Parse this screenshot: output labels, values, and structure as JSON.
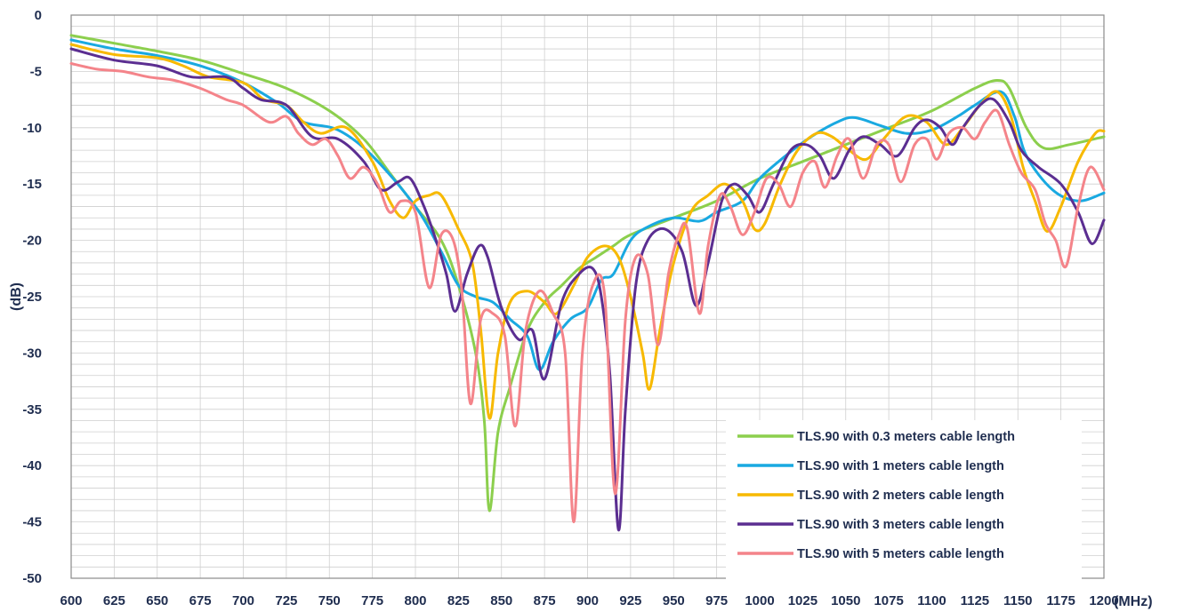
{
  "chart_data": {
    "type": "line",
    "xlabel": "(MHz)",
    "ylabel": "(dB)",
    "xlim": [
      600,
      1200
    ],
    "ylim": [
      -50,
      0
    ],
    "x_ticks": [
      "600",
      "625",
      "650",
      "675",
      "700",
      "725",
      "750",
      "775",
      "800",
      "825",
      "850",
      "875",
      "900",
      "925",
      "950",
      "975",
      "1000",
      "1025",
      "1050",
      "1075",
      "1100",
      "1125",
      "1150",
      "1175",
      "1200"
    ],
    "y_ticks": [
      "0",
      "-5",
      "-10",
      "-15",
      "-20",
      "-25",
      "-30",
      "-35",
      "-40",
      "-45",
      "-50"
    ],
    "grid": true,
    "legend_position": "bottom-right",
    "series": [
      {
        "name": "TLS.90 with 0.3 meters cable length",
        "color": "#8ccf4d",
        "points": [
          [
            600,
            -1.8
          ],
          [
            625,
            -2.5
          ],
          [
            650,
            -3.2
          ],
          [
            675,
            -4.0
          ],
          [
            700,
            -5.2
          ],
          [
            725,
            -6.5
          ],
          [
            750,
            -8.5
          ],
          [
            770,
            -11
          ],
          [
            785,
            -14
          ],
          [
            800,
            -17
          ],
          [
            815,
            -20
          ],
          [
            825,
            -24
          ],
          [
            835,
            -30
          ],
          [
            840,
            -36
          ],
          [
            843,
            -44
          ],
          [
            848,
            -37
          ],
          [
            855,
            -33
          ],
          [
            865,
            -28
          ],
          [
            875,
            -25.5
          ],
          [
            885,
            -24
          ],
          [
            895,
            -22.5
          ],
          [
            905,
            -21.5
          ],
          [
            915,
            -20.5
          ],
          [
            925,
            -19.5
          ],
          [
            950,
            -18
          ],
          [
            975,
            -16.5
          ],
          [
            1000,
            -14.5
          ],
          [
            1025,
            -13
          ],
          [
            1050,
            -11.5
          ],
          [
            1075,
            -10
          ],
          [
            1100,
            -8.5
          ],
          [
            1125,
            -6.5
          ],
          [
            1138,
            -5.8
          ],
          [
            1145,
            -6.5
          ],
          [
            1155,
            -10
          ],
          [
            1165,
            -11.8
          ],
          [
            1180,
            -11.5
          ],
          [
            1200,
            -10.8
          ]
        ]
      },
      {
        "name": "TLS.90 with 1 meters cable length",
        "color": "#19a9e1",
        "points": [
          [
            600,
            -2.2
          ],
          [
            625,
            -3.0
          ],
          [
            650,
            -3.6
          ],
          [
            675,
            -4.5
          ],
          [
            700,
            -6.0
          ],
          [
            720,
            -7.8
          ],
          [
            735,
            -9.5
          ],
          [
            755,
            -10.2
          ],
          [
            775,
            -12.5
          ],
          [
            800,
            -17
          ],
          [
            815,
            -21
          ],
          [
            825,
            -24
          ],
          [
            835,
            -25
          ],
          [
            845,
            -25.5
          ],
          [
            855,
            -27
          ],
          [
            865,
            -28.5
          ],
          [
            872,
            -31.5
          ],
          [
            880,
            -29
          ],
          [
            890,
            -27
          ],
          [
            900,
            -26
          ],
          [
            908,
            -23.5
          ],
          [
            915,
            -23
          ],
          [
            925,
            -20
          ],
          [
            935,
            -18.8
          ],
          [
            950,
            -18
          ],
          [
            965,
            -18.3
          ],
          [
            975,
            -17.5
          ],
          [
            990,
            -16.5
          ],
          [
            1000,
            -14.5
          ],
          [
            1015,
            -12.5
          ],
          [
            1030,
            -10.8
          ],
          [
            1045,
            -9.5
          ],
          [
            1055,
            -9.1
          ],
          [
            1070,
            -9.8
          ],
          [
            1085,
            -10.5
          ],
          [
            1100,
            -10.2
          ],
          [
            1115,
            -9
          ],
          [
            1125,
            -8
          ],
          [
            1140,
            -6.8
          ],
          [
            1148,
            -9
          ],
          [
            1155,
            -12.5
          ],
          [
            1170,
            -15.5
          ],
          [
            1185,
            -16.5
          ],
          [
            1200,
            -15.8
          ]
        ]
      },
      {
        "name": "TLS.90 with 2 meters cable length",
        "color": "#f7b900",
        "points": [
          [
            600,
            -2.6
          ],
          [
            625,
            -3.5
          ],
          [
            650,
            -3.8
          ],
          [
            665,
            -4.5
          ],
          [
            680,
            -5.5
          ],
          [
            700,
            -6.0
          ],
          [
            712,
            -7.5
          ],
          [
            725,
            -8.0
          ],
          [
            735,
            -9.5
          ],
          [
            745,
            -10.5
          ],
          [
            760,
            -10.0
          ],
          [
            775,
            -13.0
          ],
          [
            785,
            -16.5
          ],
          [
            793,
            -18.0
          ],
          [
            800,
            -16.5
          ],
          [
            808,
            -16.0
          ],
          [
            815,
            -16.0
          ],
          [
            825,
            -19.0
          ],
          [
            833,
            -22.0
          ],
          [
            838,
            -28.0
          ],
          [
            843,
            -35.8
          ],
          [
            848,
            -30.0
          ],
          [
            855,
            -25.5
          ],
          [
            865,
            -24.5
          ],
          [
            875,
            -25.5
          ],
          [
            882,
            -26.5
          ],
          [
            892,
            -24.0
          ],
          [
            900,
            -21.5
          ],
          [
            910,
            -20.5
          ],
          [
            918,
            -21.5
          ],
          [
            925,
            -25.0
          ],
          [
            932,
            -30.0
          ],
          [
            936,
            -33.2
          ],
          [
            942,
            -28.0
          ],
          [
            950,
            -22.0
          ],
          [
            960,
            -17.5
          ],
          [
            970,
            -16.0
          ],
          [
            980,
            -15.0
          ],
          [
            990,
            -16.5
          ],
          [
            997,
            -19.0
          ],
          [
            1003,
            -18.5
          ],
          [
            1012,
            -15.0
          ],
          [
            1022,
            -12.0
          ],
          [
            1033,
            -10.5
          ],
          [
            1042,
            -10.8
          ],
          [
            1052,
            -12.0
          ],
          [
            1062,
            -12.8
          ],
          [
            1072,
            -11.0
          ],
          [
            1085,
            -9.0
          ],
          [
            1097,
            -9.5
          ],
          [
            1108,
            -11.5
          ],
          [
            1118,
            -10.0
          ],
          [
            1128,
            -8.0
          ],
          [
            1138,
            -6.8
          ],
          [
            1146,
            -9.0
          ],
          [
            1153,
            -13.5
          ],
          [
            1160,
            -16.5
          ],
          [
            1167,
            -19.2
          ],
          [
            1175,
            -17.0
          ],
          [
            1185,
            -13.0
          ],
          [
            1195,
            -10.5
          ],
          [
            1200,
            -10.3
          ]
        ]
      },
      {
        "name": "TLS.90 with 3 meters cable length",
        "color": "#5b2e91",
        "points": [
          [
            600,
            -3.0
          ],
          [
            625,
            -4.0
          ],
          [
            650,
            -4.5
          ],
          [
            670,
            -5.5
          ],
          [
            690,
            -5.5
          ],
          [
            700,
            -6.5
          ],
          [
            710,
            -7.5
          ],
          [
            725,
            -8.0
          ],
          [
            740,
            -10.8
          ],
          [
            755,
            -11.0
          ],
          [
            770,
            -13.0
          ],
          [
            780,
            -15.5
          ],
          [
            790,
            -14.8
          ],
          [
            797,
            -14.5
          ],
          [
            805,
            -17.0
          ],
          [
            812,
            -20.0
          ],
          [
            818,
            -23.0
          ],
          [
            823,
            -26.3
          ],
          [
            830,
            -23.0
          ],
          [
            837,
            -20.5
          ],
          [
            842,
            -21.5
          ],
          [
            850,
            -26.0
          ],
          [
            860,
            -28.8
          ],
          [
            868,
            -28.0
          ],
          [
            875,
            -32.3
          ],
          [
            885,
            -25.5
          ],
          [
            895,
            -23.0
          ],
          [
            903,
            -22.5
          ],
          [
            908,
            -25.0
          ],
          [
            913,
            -32.0
          ],
          [
            918,
            -45.7
          ],
          [
            922,
            -35.0
          ],
          [
            928,
            -24.0
          ],
          [
            935,
            -20.0
          ],
          [
            945,
            -19.0
          ],
          [
            955,
            -21.0
          ],
          [
            963,
            -25.8
          ],
          [
            970,
            -22.0
          ],
          [
            978,
            -16.5
          ],
          [
            985,
            -15.0
          ],
          [
            993,
            -16.0
          ],
          [
            1000,
            -17.5
          ],
          [
            1008,
            -15.0
          ],
          [
            1018,
            -12.0
          ],
          [
            1027,
            -11.5
          ],
          [
            1035,
            -12.5
          ],
          [
            1043,
            -14.5
          ],
          [
            1052,
            -12.0
          ],
          [
            1060,
            -10.8
          ],
          [
            1070,
            -11.5
          ],
          [
            1080,
            -12.5
          ],
          [
            1090,
            -10.0
          ],
          [
            1097,
            -9.3
          ],
          [
            1105,
            -10.0
          ],
          [
            1112,
            -11.5
          ],
          [
            1118,
            -10.0
          ],
          [
            1128,
            -8.0
          ],
          [
            1136,
            -7.5
          ],
          [
            1145,
            -9.5
          ],
          [
            1152,
            -12.0
          ],
          [
            1162,
            -13.5
          ],
          [
            1175,
            -15.0
          ],
          [
            1185,
            -17.5
          ],
          [
            1193,
            -20.3
          ],
          [
            1200,
            -18.2
          ]
        ]
      },
      {
        "name": "TLS.90 with 5 meters cable length",
        "color": "#f4848a",
        "points": [
          [
            600,
            -4.3
          ],
          [
            615,
            -4.8
          ],
          [
            630,
            -5.0
          ],
          [
            645,
            -5.5
          ],
          [
            660,
            -5.8
          ],
          [
            675,
            -6.5
          ],
          [
            690,
            -7.5
          ],
          [
            700,
            -8.0
          ],
          [
            715,
            -9.5
          ],
          [
            725,
            -9.0
          ],
          [
            732,
            -10.5
          ],
          [
            740,
            -11.5
          ],
          [
            748,
            -11.0
          ],
          [
            755,
            -12.5
          ],
          [
            762,
            -14.5
          ],
          [
            770,
            -13.5
          ],
          [
            778,
            -15.0
          ],
          [
            785,
            -17.5
          ],
          [
            792,
            -16.5
          ],
          [
            800,
            -17.5
          ],
          [
            808,
            -24.2
          ],
          [
            815,
            -19.5
          ],
          [
            822,
            -20.0
          ],
          [
            827,
            -24.5
          ],
          [
            832,
            -34.5
          ],
          [
            838,
            -27.0
          ],
          [
            845,
            -26.5
          ],
          [
            852,
            -28.5
          ],
          [
            858,
            -36.5
          ],
          [
            864,
            -28.0
          ],
          [
            872,
            -24.5
          ],
          [
            880,
            -26.5
          ],
          [
            887,
            -30.0
          ],
          [
            892,
            -45.0
          ],
          [
            897,
            -30.0
          ],
          [
            903,
            -24.0
          ],
          [
            910,
            -25.0
          ],
          [
            916,
            -42.5
          ],
          [
            922,
            -27.0
          ],
          [
            928,
            -21.5
          ],
          [
            935,
            -23.0
          ],
          [
            941,
            -29.3
          ],
          [
            947,
            -23.0
          ],
          [
            953,
            -19.5
          ],
          [
            958,
            -19.0
          ],
          [
            965,
            -26.5
          ],
          [
            970,
            -20.5
          ],
          [
            977,
            -16.0
          ],
          [
            983,
            -17.0
          ],
          [
            990,
            -19.5
          ],
          [
            997,
            -17.5
          ],
          [
            1004,
            -14.5
          ],
          [
            1011,
            -15.0
          ],
          [
            1018,
            -17.0
          ],
          [
            1025,
            -14.0
          ],
          [
            1032,
            -13.0
          ],
          [
            1038,
            -15.3
          ],
          [
            1045,
            -12.5
          ],
          [
            1052,
            -11.0
          ],
          [
            1060,
            -14.5
          ],
          [
            1068,
            -11.5
          ],
          [
            1075,
            -11.5
          ],
          [
            1082,
            -14.8
          ],
          [
            1090,
            -11.5
          ],
          [
            1097,
            -11.0
          ],
          [
            1103,
            -12.8
          ],
          [
            1110,
            -10.5
          ],
          [
            1118,
            -10.0
          ],
          [
            1125,
            -11.0
          ],
          [
            1131,
            -9.5
          ],
          [
            1138,
            -8.5
          ],
          [
            1145,
            -11.5
          ],
          [
            1152,
            -14.0
          ],
          [
            1160,
            -15.5
          ],
          [
            1166,
            -18.5
          ],
          [
            1172,
            -20.0
          ],
          [
            1178,
            -22.3
          ],
          [
            1185,
            -17.0
          ],
          [
            1192,
            -13.5
          ],
          [
            1200,
            -15.5
          ]
        ]
      }
    ]
  }
}
